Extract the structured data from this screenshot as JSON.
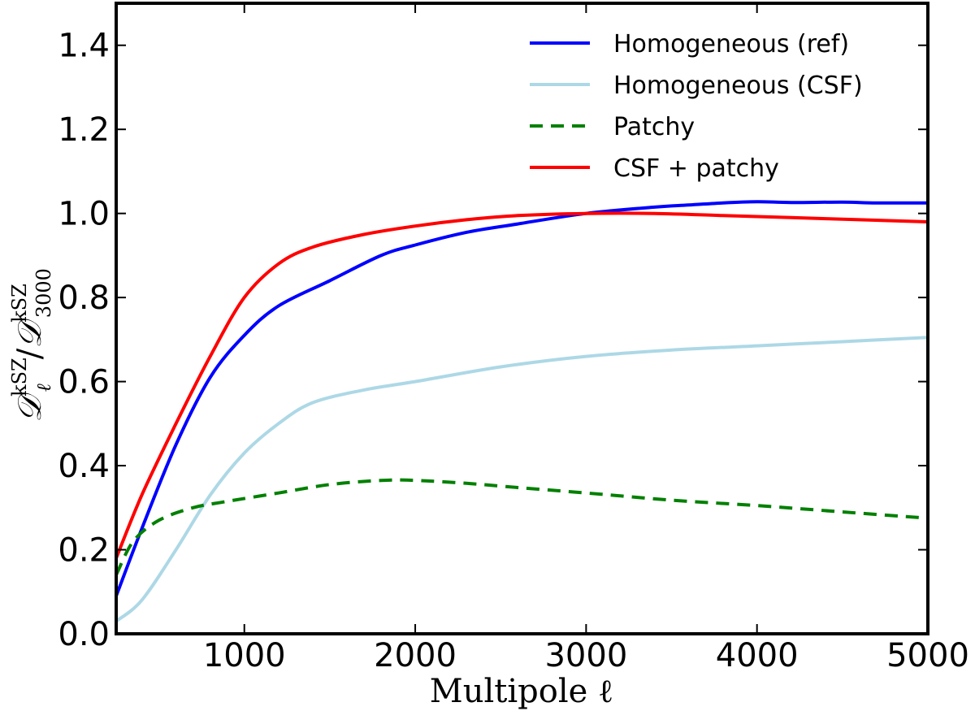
{
  "chart_data": {
    "type": "line",
    "title": "",
    "xlabel": "Multipole ℓ",
    "ylabel": {
      "main": "𝒟",
      "num_sub": "ℓ",
      "num_sup": "kSZ",
      "slash": "/",
      "den_sub": "3000",
      "den_sup": "kSZ"
    },
    "xlim": [
      250,
      5000
    ],
    "ylim": [
      0.0,
      1.5
    ],
    "xticks": [
      1000,
      2000,
      3000,
      4000,
      5000
    ],
    "xtick_labels": [
      "1000",
      "2000",
      "3000",
      "4000",
      "5000"
    ],
    "yticks": [
      0.0,
      0.2,
      0.4,
      0.6,
      0.8,
      1.0,
      1.2,
      1.4
    ],
    "ytick_labels": [
      "0.0",
      "0.2",
      "0.4",
      "0.6",
      "0.8",
      "1.0",
      "1.2",
      "1.4"
    ],
    "grid": false,
    "legend_position": "top-right",
    "series": [
      {
        "name": "Homogeneous (ref)",
        "color": "#0000ff",
        "style": "solid",
        "x": [
          250,
          400,
          600,
          800,
          1000,
          1200,
          1500,
          1800,
          2000,
          2300,
          2600,
          3000,
          3400,
          3600,
          3800,
          4000,
          4200,
          4500,
          4700,
          5000
        ],
        "y": [
          0.09,
          0.25,
          0.45,
          0.61,
          0.71,
          0.78,
          0.84,
          0.9,
          0.925,
          0.955,
          0.975,
          1.0,
          1.015,
          1.02,
          1.025,
          1.028,
          1.026,
          1.027,
          1.025,
          1.025
        ]
      },
      {
        "name": "Homogeneous (CSF)",
        "color": "#add8e6",
        "style": "solid",
        "x": [
          250,
          400,
          600,
          800,
          1000,
          1200,
          1400,
          1700,
          2000,
          2500,
          3000,
          3500,
          4000,
          4500,
          5000
        ],
        "y": [
          0.03,
          0.08,
          0.2,
          0.33,
          0.43,
          0.5,
          0.55,
          0.58,
          0.6,
          0.635,
          0.66,
          0.675,
          0.685,
          0.695,
          0.705
        ]
      },
      {
        "name": "Patchy",
        "color": "#008000",
        "style": "dashed",
        "x": [
          250,
          350,
          500,
          700,
          900,
          1200,
          1500,
          1800,
          2000,
          2300,
          2600,
          3000,
          3500,
          4000,
          4500,
          5000
        ],
        "y": [
          0.14,
          0.22,
          0.27,
          0.3,
          0.315,
          0.335,
          0.355,
          0.365,
          0.365,
          0.358,
          0.348,
          0.335,
          0.318,
          0.305,
          0.29,
          0.275
        ]
      },
      {
        "name": "CSF + patchy",
        "color": "#ff0000",
        "style": "solid",
        "x": [
          250,
          400,
          600,
          800,
          1000,
          1200,
          1400,
          1700,
          2000,
          2300,
          2600,
          3000,
          3400,
          3800,
          4200,
          4600,
          5000
        ],
        "y": [
          0.18,
          0.33,
          0.5,
          0.66,
          0.8,
          0.88,
          0.92,
          0.95,
          0.97,
          0.985,
          0.995,
          1.0,
          1.0,
          0.995,
          0.99,
          0.985,
          0.98
        ]
      }
    ]
  }
}
